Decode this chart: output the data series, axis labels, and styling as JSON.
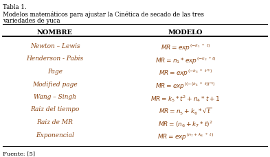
{
  "title_line1": "Tabla 1.",
  "title_line2a": "Modelos matemáticos para ajustar la Cinética de secado de las tres",
  "title_line2b": "variedades de yuca",
  "col_headers": [
    "NOMBRE",
    "MODELO"
  ],
  "names": [
    "Newton – Lewis",
    "Henderson - Pabis",
    "Page",
    "Modified page",
    "Wang – Singh",
    "Raiz del tiempo",
    "Raiz de MR",
    "Exponencial"
  ],
  "models": [
    "$MR = exp^{(-k_1\\ *\\ t)}$",
    "$MR = n_1 * exp^{(-k_2\\ *t)}$",
    "$MR = exp^{(-k_3\\ *\\ t^{n_2})}$",
    "$MR = exp^{((-(k_4\\ *\\ t))^{n_3})}$",
    "$MR = k_5 * t^2 + n_4 * t + 1$",
    "$MR = n_5 + k_6 * \\sqrt{t}$",
    "$MR = (n_6 + k_7 * t)^2$",
    "$MR = exp^{(n_7 + k_8\\ *\\ t)}$"
  ],
  "footer": "Fuente: [5]",
  "text_color": "#8B4513",
  "black": "#000000",
  "bg_color": "#ffffff",
  "figsize": [
    3.93,
    2.29
  ],
  "dpi": 100
}
